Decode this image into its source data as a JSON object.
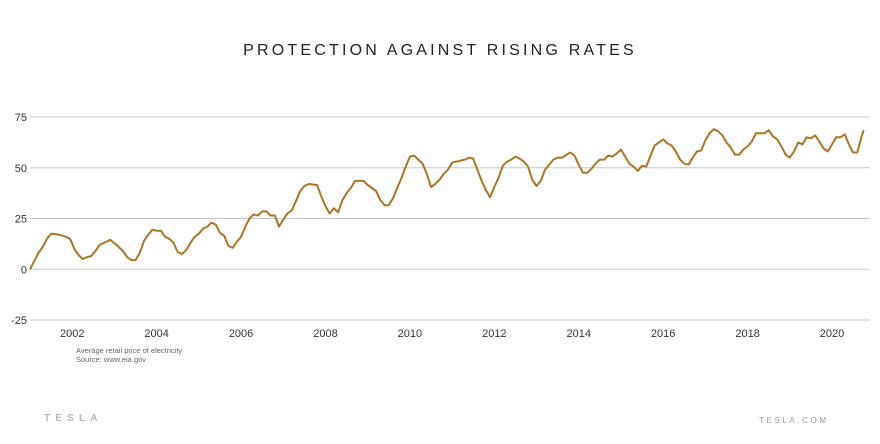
{
  "title": "PROTECTION AGAINST RISING RATES",
  "notes": {
    "line1": "Average retail price of electricity",
    "line2": "Source: www.eia.gov"
  },
  "footer": {
    "brand": "TESLA",
    "site": "TESLA.COM"
  },
  "colors": {
    "line": "#A8762A",
    "grid": "#c8c8c8",
    "axis_text": "#333333"
  },
  "chart_data": {
    "type": "line",
    "title": "PROTECTION AGAINST RISING RATES",
    "xlabel": "",
    "ylabel": "",
    "xlim": [
      2001.0,
      2020.9
    ],
    "ylim": [
      -25,
      75
    ],
    "x_ticks": [
      2002,
      2004,
      2006,
      2008,
      2010,
      2012,
      2014,
      2016,
      2018,
      2020
    ],
    "y_ticks": [
      -25,
      0,
      25,
      50,
      75
    ],
    "grid": "horizontal",
    "legend": "none",
    "series": [
      {
        "points": [
          [
            2001.0,
            0
          ],
          [
            2001.1,
            4
          ],
          [
            2001.2,
            8
          ],
          [
            2001.3,
            11
          ],
          [
            2001.4,
            15
          ],
          [
            2001.5,
            17.5
          ],
          [
            2001.7,
            17
          ],
          [
            2001.85,
            16
          ],
          [
            2001.95,
            15
          ],
          [
            2002.05,
            10
          ],
          [
            2002.15,
            7
          ],
          [
            2002.25,
            5
          ],
          [
            2002.35,
            6
          ],
          [
            2002.45,
            6.5
          ],
          [
            2002.55,
            9
          ],
          [
            2002.65,
            12
          ],
          [
            2002.75,
            13
          ],
          [
            2002.9,
            14.5
          ],
          [
            2003.05,
            12
          ],
          [
            2003.2,
            9
          ],
          [
            2003.3,
            6
          ],
          [
            2003.4,
            4.5
          ],
          [
            2003.5,
            4.5
          ],
          [
            2003.6,
            8
          ],
          [
            2003.7,
            14
          ],
          [
            2003.8,
            17
          ],
          [
            2003.9,
            19.5
          ],
          [
            2004.0,
            19
          ],
          [
            2004.1,
            19
          ],
          [
            2004.2,
            16
          ],
          [
            2004.3,
            15
          ],
          [
            2004.4,
            13
          ],
          [
            2004.5,
            8.5
          ],
          [
            2004.6,
            7.5
          ],
          [
            2004.7,
            9.5
          ],
          [
            2004.8,
            13
          ],
          [
            2004.9,
            16
          ],
          [
            2005.0,
            17.5
          ],
          [
            2005.1,
            20
          ],
          [
            2005.2,
            21
          ],
          [
            2005.3,
            23
          ],
          [
            2005.4,
            22
          ],
          [
            2005.5,
            18
          ],
          [
            2005.6,
            16.5
          ],
          [
            2005.7,
            11.5
          ],
          [
            2005.8,
            10.5
          ],
          [
            2005.9,
            13.5
          ],
          [
            2006.0,
            16
          ],
          [
            2006.1,
            21
          ],
          [
            2006.2,
            25
          ],
          [
            2006.3,
            27
          ],
          [
            2006.4,
            26.5
          ],
          [
            2006.5,
            28.5
          ],
          [
            2006.6,
            28.5
          ],
          [
            2006.7,
            26.5
          ],
          [
            2006.8,
            26.5
          ],
          [
            2006.9,
            21
          ],
          [
            2007.0,
            24.5
          ],
          [
            2007.1,
            27.5
          ],
          [
            2007.2,
            29
          ],
          [
            2007.3,
            33.5
          ],
          [
            2007.4,
            38.5
          ],
          [
            2007.5,
            41
          ],
          [
            2007.6,
            42
          ],
          [
            2007.8,
            41.5
          ],
          [
            2007.9,
            36
          ],
          [
            2008.0,
            31
          ],
          [
            2008.1,
            27.5
          ],
          [
            2008.2,
            30
          ],
          [
            2008.3,
            28
          ],
          [
            2008.4,
            34
          ],
          [
            2008.5,
            37.5
          ],
          [
            2008.6,
            40
          ],
          [
            2008.7,
            43.5
          ],
          [
            2008.9,
            43.5
          ],
          [
            2009.0,
            41.5
          ],
          [
            2009.1,
            40
          ],
          [
            2009.2,
            38.5
          ],
          [
            2009.3,
            34
          ],
          [
            2009.4,
            31.5
          ],
          [
            2009.5,
            31.5
          ],
          [
            2009.6,
            35
          ],
          [
            2009.7,
            40
          ],
          [
            2009.8,
            45
          ],
          [
            2009.9,
            50.5
          ],
          [
            2010.0,
            55.5
          ],
          [
            2010.1,
            56
          ],
          [
            2010.2,
            54
          ],
          [
            2010.3,
            52
          ],
          [
            2010.4,
            47
          ],
          [
            2010.5,
            40.5
          ],
          [
            2010.6,
            42
          ],
          [
            2010.7,
            44
          ],
          [
            2010.8,
            47
          ],
          [
            2010.9,
            49
          ],
          [
            2011.0,
            52.5
          ],
          [
            2011.2,
            53.5
          ],
          [
            2011.3,
            54
          ],
          [
            2011.4,
            55
          ],
          [
            2011.5,
            54.5
          ],
          [
            2011.6,
            49
          ],
          [
            2011.7,
            43.5
          ],
          [
            2011.8,
            39
          ],
          [
            2011.9,
            35.5
          ],
          [
            2012.0,
            40.5
          ],
          [
            2012.1,
            45
          ],
          [
            2012.2,
            51
          ],
          [
            2012.3,
            53
          ],
          [
            2012.4,
            54
          ],
          [
            2012.5,
            55.5
          ],
          [
            2012.6,
            54.5
          ],
          [
            2012.7,
            53
          ],
          [
            2012.8,
            50.5
          ],
          [
            2012.9,
            44
          ],
          [
            2013.0,
            41
          ],
          [
            2013.1,
            43.5
          ],
          [
            2013.2,
            49
          ],
          [
            2013.3,
            51.5
          ],
          [
            2013.4,
            54
          ],
          [
            2013.5,
            55
          ],
          [
            2013.6,
            55
          ],
          [
            2013.8,
            57.5
          ],
          [
            2013.9,
            56
          ],
          [
            2014.0,
            51.5
          ],
          [
            2014.1,
            47.5
          ],
          [
            2014.2,
            47.5
          ],
          [
            2014.3,
            49.5
          ],
          [
            2014.4,
            52
          ],
          [
            2014.5,
            54
          ],
          [
            2014.6,
            54
          ],
          [
            2014.7,
            56
          ],
          [
            2014.8,
            55.5
          ],
          [
            2014.9,
            57
          ],
          [
            2015.0,
            59
          ],
          [
            2015.1,
            55.5
          ],
          [
            2015.2,
            52
          ],
          [
            2015.3,
            50.5
          ],
          [
            2015.4,
            48.5
          ],
          [
            2015.5,
            51
          ],
          [
            2015.6,
            50.5
          ],
          [
            2015.7,
            56
          ],
          [
            2015.8,
            61
          ],
          [
            2015.9,
            62.5
          ],
          [
            2016.0,
            64
          ],
          [
            2016.1,
            62
          ],
          [
            2016.2,
            61
          ],
          [
            2016.3,
            58
          ],
          [
            2016.4,
            54
          ],
          [
            2016.5,
            52
          ],
          [
            2016.6,
            51.5
          ],
          [
            2016.7,
            55
          ],
          [
            2016.8,
            58
          ],
          [
            2016.9,
            58.5
          ],
          [
            2017.0,
            63.5
          ],
          [
            2017.1,
            67
          ],
          [
            2017.2,
            69
          ],
          [
            2017.3,
            68
          ],
          [
            2017.4,
            66
          ],
          [
            2017.5,
            62.5
          ],
          [
            2017.6,
            60
          ],
          [
            2017.7,
            56.5
          ],
          [
            2017.8,
            56.5
          ],
          [
            2017.9,
            59
          ],
          [
            2018.0,
            60.5
          ],
          [
            2018.1,
            63
          ],
          [
            2018.2,
            67
          ],
          [
            2018.3,
            67
          ],
          [
            2018.4,
            67
          ],
          [
            2018.5,
            68.5
          ],
          [
            2018.6,
            65.5
          ],
          [
            2018.7,
            64
          ],
          [
            2018.8,
            60.5
          ],
          [
            2018.9,
            56.5
          ],
          [
            2019.0,
            55
          ],
          [
            2019.1,
            58
          ],
          [
            2019.2,
            62.5
          ],
          [
            2019.3,
            61.5
          ],
          [
            2019.4,
            65
          ],
          [
            2019.5,
            64.5
          ],
          [
            2019.6,
            66
          ],
          [
            2019.7,
            63
          ],
          [
            2019.8,
            59.5
          ],
          [
            2019.9,
            58
          ],
          [
            2020.0,
            61.5
          ],
          [
            2020.1,
            65
          ],
          [
            2020.2,
            65
          ],
          [
            2020.3,
            66.5
          ],
          [
            2020.4,
            61.5
          ],
          [
            2020.5,
            57.5
          ],
          [
            2020.6,
            57.5
          ],
          [
            2020.7,
            65.5
          ],
          [
            2020.75,
            68.5
          ]
        ]
      }
    ]
  }
}
